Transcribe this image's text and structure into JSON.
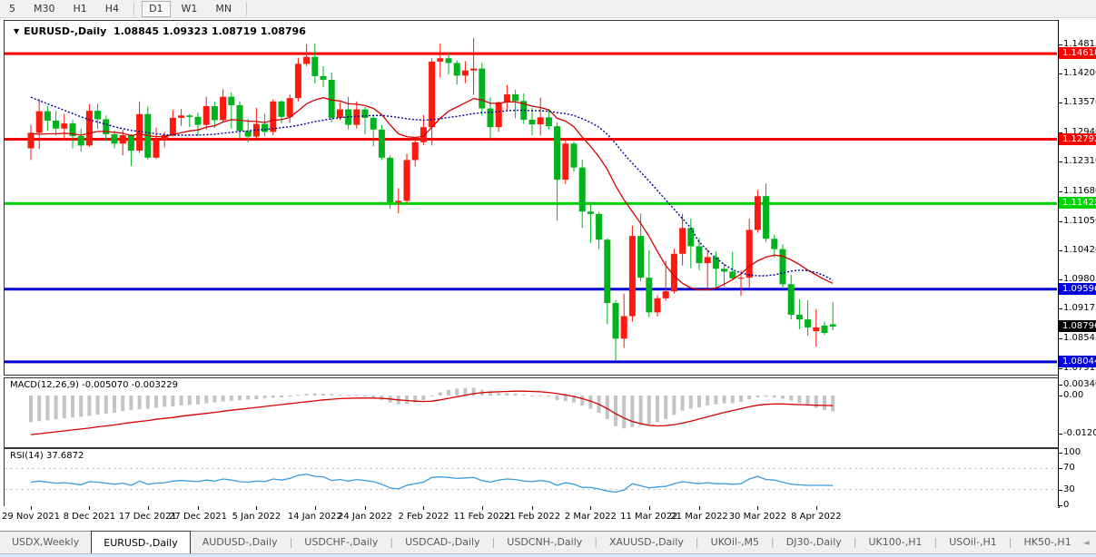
{
  "toolbar": {
    "timeframes": [
      {
        "label": "5",
        "active": false
      },
      {
        "label": "M30",
        "active": false
      },
      {
        "label": "H1",
        "active": false
      },
      {
        "label": "H4",
        "active": false
      },
      {
        "label": "D1",
        "active": true
      },
      {
        "label": "W1",
        "active": false
      },
      {
        "label": "MN",
        "active": false
      }
    ]
  },
  "icons": {
    "symbol_dropdown": "▼",
    "tab_scroll_left": "◄",
    "tab_scroll_right": "►"
  },
  "chart_data": {
    "type": "candlestick",
    "symbol_display": "EURUSD-,Daily",
    "ohlc_display": "1.08845 1.09323 1.08719 1.08796",
    "current": {
      "open": 1.08845,
      "high": 1.09323,
      "low": 1.08719,
      "close": 1.08796
    },
    "colors": {
      "up_candle": "#fb1a0d",
      "down_candle": "#00b21c",
      "hline_red": "#fe0000",
      "hline_green": "#00e40b",
      "hline_blue": "#0000dc",
      "ma_red": "#d40000",
      "ma_blue": "#000096",
      "macd_hist": "#c4c4c4",
      "macd_signal": "#d40000",
      "rsi_line": "#3e9cdd",
      "rsi_level": "#c8c8c8",
      "current_badge_bg": "#000000"
    },
    "hlines": [
      {
        "price": 1.14618,
        "color": "#fe0000",
        "badge": "1.14618"
      },
      {
        "price": 1.12792,
        "color": "#fe0000",
        "badge": "1.12792"
      },
      {
        "price": 1.11422,
        "color": "#00d400",
        "badge": "1.11422"
      },
      {
        "price": 1.09596,
        "color": "#0000dc",
        "badge": "1.09596"
      },
      {
        "price": 1.08044,
        "color": "#0000dc",
        "badge": "1.08044"
      }
    ],
    "price_axis_ticks": [
      "1.14815",
      "1.14200",
      "1.13570",
      "1.12940",
      "1.12310",
      "1.11680",
      "1.11050",
      "1.10420",
      "1.09805",
      "1.09175",
      "1.08545",
      "1.07915"
    ],
    "current_price_badge": "1.08796",
    "x_axis": {
      "labels": [
        "29 Nov 2021",
        "8 Dec 2021",
        "17 Dec 2021",
        "27 Dec 2021",
        "5 Jan 2022",
        "14 Jan 2022",
        "24 Jan 2022",
        "2 Feb 2022",
        "11 Feb 2022",
        "21 Feb 2022",
        "2 Mar 2022",
        "11 Mar 2022",
        "21 Mar 2022",
        "30 Mar 2022",
        "8 Apr 2022"
      ],
      "label_indices": [
        0,
        7,
        14,
        20,
        27,
        34,
        40,
        47,
        54,
        60,
        67,
        74,
        80,
        87,
        94
      ]
    },
    "candles": [
      [
        1.126,
        1.131,
        1.1235,
        1.1293
      ],
      [
        1.1293,
        1.1365,
        1.1258,
        1.1339
      ],
      [
        1.1339,
        1.135,
        1.1297,
        1.1319
      ],
      [
        1.1319,
        1.134,
        1.1287,
        1.1302
      ],
      [
        1.1302,
        1.1334,
        1.1277,
        1.1313
      ],
      [
        1.1313,
        1.132,
        1.126,
        1.1286
      ],
      [
        1.1286,
        1.1302,
        1.1253,
        1.1266
      ],
      [
        1.1266,
        1.1354,
        1.1263,
        1.134
      ],
      [
        1.134,
        1.1355,
        1.1301,
        1.1322
      ],
      [
        1.1322,
        1.133,
        1.1276,
        1.129
      ],
      [
        1.129,
        1.1298,
        1.126,
        1.127
      ],
      [
        1.127,
        1.13,
        1.1245,
        1.1288
      ],
      [
        1.1288,
        1.129,
        1.1222,
        1.1255
      ],
      [
        1.1255,
        1.136,
        1.125,
        1.1333
      ],
      [
        1.1333,
        1.1349,
        1.1236,
        1.124
      ],
      [
        1.124,
        1.1304,
        1.1237,
        1.1278
      ],
      [
        1.1278,
        1.1295,
        1.1262,
        1.1288
      ],
      [
        1.1288,
        1.1342,
        1.1285,
        1.1325
      ],
      [
        1.1325,
        1.1344,
        1.1308,
        1.133
      ],
      [
        1.133,
        1.1333,
        1.1305,
        1.1327
      ],
      [
        1.1327,
        1.1336,
        1.1287,
        1.131
      ],
      [
        1.131,
        1.137,
        1.13,
        1.135
      ],
      [
        1.135,
        1.136,
        1.1304,
        1.132
      ],
      [
        1.132,
        1.1386,
        1.1315,
        1.137
      ],
      [
        1.137,
        1.1379,
        1.1302,
        1.1352
      ],
      [
        1.1352,
        1.136,
        1.1279,
        1.1297
      ],
      [
        1.1297,
        1.1323,
        1.1272,
        1.1285
      ],
      [
        1.1285,
        1.1346,
        1.1278,
        1.1312
      ],
      [
        1.1312,
        1.1334,
        1.1285,
        1.1295
      ],
      [
        1.1295,
        1.1365,
        1.1288,
        1.136
      ],
      [
        1.136,
        1.1362,
        1.1313,
        1.1327
      ],
      [
        1.1327,
        1.1375,
        1.1314,
        1.1367
      ],
      [
        1.1367,
        1.1453,
        1.136,
        1.144
      ],
      [
        1.144,
        1.1482,
        1.1435,
        1.1455
      ],
      [
        1.1455,
        1.1483,
        1.1398,
        1.1414
      ],
      [
        1.1414,
        1.1435,
        1.139,
        1.1406
      ],
      [
        1.1406,
        1.1422,
        1.1315,
        1.1325
      ],
      [
        1.1325,
        1.1358,
        1.132,
        1.1343
      ],
      [
        1.1343,
        1.137,
        1.13,
        1.131
      ],
      [
        1.131,
        1.136,
        1.1302,
        1.1343
      ],
      [
        1.1343,
        1.1348,
        1.129,
        1.1325
      ],
      [
        1.1325,
        1.133,
        1.1264,
        1.13
      ],
      [
        1.13,
        1.131,
        1.1235,
        1.124
      ],
      [
        1.124,
        1.1245,
        1.1131,
        1.1145
      ],
      [
        1.1145,
        1.1175,
        1.1121,
        1.1148
      ],
      [
        1.1148,
        1.1248,
        1.1141,
        1.1235
      ],
      [
        1.1235,
        1.128,
        1.1221,
        1.1273
      ],
      [
        1.1273,
        1.1331,
        1.1267,
        1.1305
      ],
      [
        1.1305,
        1.1452,
        1.1266,
        1.1445
      ],
      [
        1.1445,
        1.1483,
        1.1411,
        1.1452
      ],
      [
        1.1452,
        1.1465,
        1.1418,
        1.1442
      ],
      [
        1.1442,
        1.1448,
        1.1396,
        1.1415
      ],
      [
        1.1415,
        1.1446,
        1.1399,
        1.1426
      ],
      [
        1.1426,
        1.1495,
        1.1374,
        1.143
      ],
      [
        1.143,
        1.1442,
        1.133,
        1.1345
      ],
      [
        1.1345,
        1.1369,
        1.128,
        1.1305
      ],
      [
        1.1305,
        1.136,
        1.1295,
        1.1358
      ],
      [
        1.1358,
        1.1395,
        1.134,
        1.1375
      ],
      [
        1.1375,
        1.1385,
        1.1324,
        1.1361
      ],
      [
        1.1361,
        1.1377,
        1.1312,
        1.1321
      ],
      [
        1.1321,
        1.1346,
        1.1288,
        1.1311
      ],
      [
        1.1311,
        1.1368,
        1.1287,
        1.1326
      ],
      [
        1.1326,
        1.1344,
        1.13,
        1.1307
      ],
      [
        1.1307,
        1.1315,
        1.1106,
        1.1193
      ],
      [
        1.1193,
        1.128,
        1.1184,
        1.127
      ],
      [
        1.127,
        1.1274,
        1.121,
        1.1219
      ],
      [
        1.1219,
        1.1236,
        1.109,
        1.1125
      ],
      [
        1.1125,
        1.1145,
        1.1058,
        1.112
      ],
      [
        1.112,
        1.1124,
        1.1045,
        1.1065
      ],
      [
        1.1065,
        1.1068,
        1.0885,
        1.093
      ],
      [
        1.093,
        1.0936,
        1.0806,
        1.0854
      ],
      [
        1.0854,
        1.095,
        1.0834,
        1.0902
      ],
      [
        1.0902,
        1.1095,
        1.089,
        1.1073
      ],
      [
        1.1073,
        1.1121,
        1.0976,
        1.0984
      ],
      [
        1.0984,
        1.1043,
        1.09,
        1.091
      ],
      [
        1.091,
        1.0947,
        1.0901,
        1.094
      ],
      [
        1.094,
        1.102,
        1.0935,
        1.0955
      ],
      [
        1.0955,
        1.1046,
        1.095,
        1.1035
      ],
      [
        1.1035,
        1.112,
        1.101,
        1.109
      ],
      [
        1.109,
        1.111,
        1.1004,
        1.1051
      ],
      [
        1.1051,
        1.1069,
        1.1,
        1.1015
      ],
      [
        1.1015,
        1.1044,
        1.096,
        1.1028
      ],
      [
        1.1028,
        1.104,
        1.0963,
        1.1003
      ],
      [
        1.1003,
        1.1014,
        1.0965,
        1.0997
      ],
      [
        1.0997,
        1.1039,
        1.098,
        1.0983
      ],
      [
        1.0983,
        1.1,
        1.0945,
        1.0984
      ],
      [
        1.0984,
        1.111,
        1.0963,
        1.1086
      ],
      [
        1.1086,
        1.1171,
        1.108,
        1.1158
      ],
      [
        1.1158,
        1.1185,
        1.106,
        1.1067
      ],
      [
        1.1067,
        1.1076,
        1.1027,
        1.1045
      ],
      [
        1.1045,
        1.1055,
        1.096,
        1.097
      ],
      [
        1.097,
        1.099,
        1.0895,
        1.0905
      ],
      [
        1.0905,
        1.0938,
        1.0874,
        1.0895
      ],
      [
        1.0895,
        1.0936,
        1.086,
        1.0878
      ],
      [
        1.087,
        1.0917,
        1.0837,
        1.0878
      ],
      [
        1.0882,
        1.089,
        1.0862,
        1.0866
      ],
      [
        1.08845,
        1.09323,
        1.08719,
        1.08796
      ]
    ],
    "ma_fast_red": [
      1.1292,
      1.129,
      1.1291,
      1.1291,
      1.1292,
      1.1291,
      1.1288,
      1.1292,
      1.1296,
      1.1296,
      1.1294,
      1.1292,
      1.1287,
      1.1291,
      1.1287,
      1.1285,
      1.1285,
      1.1289,
      1.1293,
      1.1297,
      1.1299,
      1.1305,
      1.1308,
      1.1316,
      1.1321,
      1.132,
      1.1318,
      1.1317,
      1.1315,
      1.132,
      1.1321,
      1.1326,
      1.134,
      1.1355,
      1.1363,
      1.1368,
      1.1363,
      1.1361,
      1.1355,
      1.1354,
      1.1351,
      1.1345,
      1.1332,
      1.131,
      1.1291,
      1.1285,
      1.1283,
      1.1286,
      1.1305,
      1.1324,
      1.1339,
      1.1348,
      1.1357,
      1.1366,
      1.1363,
      1.1356,
      1.1356,
      1.1359,
      1.1359,
      1.1355,
      1.135,
      1.1347,
      1.1342,
      1.1324,
      1.1318,
      1.1306,
      1.1284,
      1.1264,
      1.1242,
      1.1215,
      1.118,
      1.115,
      1.1125,
      1.11,
      1.1072,
      1.104,
      1.101,
      1.0988,
      1.0972,
      1.0962,
      1.0958,
      1.0958,
      1.0962,
      1.097,
      1.098,
      1.0992,
      1.1008,
      1.102,
      1.1028,
      1.1032,
      1.103,
      1.1022,
      1.1012,
      1.1,
      1.099,
      1.098,
      1.0972
    ],
    "ma_slow_blue": [
      1.1369,
      1.1362,
      1.1355,
      1.1348,
      1.1341,
      1.1334,
      1.1327,
      1.1321,
      1.1316,
      1.1311,
      1.1306,
      1.1302,
      1.1298,
      1.1296,
      1.1293,
      1.1291,
      1.1289,
      1.1288,
      1.1288,
      1.1288,
      1.1288,
      1.1289,
      1.129,
      1.1292,
      1.1294,
      1.1296,
      1.1297,
      1.1299,
      1.13,
      1.1302,
      1.1304,
      1.1306,
      1.1309,
      1.1313,
      1.1317,
      1.132,
      1.1323,
      1.1325,
      1.1327,
      1.1328,
      1.1329,
      1.133,
      1.133,
      1.1328,
      1.1326,
      1.1323,
      1.1321,
      1.132,
      1.1321,
      1.1323,
      1.1326,
      1.1328,
      1.1331,
      1.1334,
      1.1336,
      1.1337,
      1.1338,
      1.134,
      1.1341,
      1.1341,
      1.134,
      1.134,
      1.1339,
      1.1336,
      1.1334,
      1.133,
      1.1323,
      1.1315,
      1.1305,
      1.129,
      1.127,
      1.1248,
      1.1228,
      1.1209,
      1.119,
      1.117,
      1.115,
      1.113,
      1.111,
      1.109,
      1.106,
      1.1042,
      1.1026,
      1.1012,
      1.1001,
      1.0994,
      1.099,
      1.0988,
      1.0988,
      1.099,
      1.0994,
      1.0998,
      1.1,
      1.0999,
      1.0995,
      1.0988,
      1.0978
    ],
    "macd": {
      "display": "MACD(12,26,9) -0.005070 -0.003229",
      "label": "MACD(12,26,9)",
      "main_value": -0.00507,
      "signal_value": -0.003229,
      "axis_ticks": [
        {
          "label": "0.003408",
          "value": 0.003408
        },
        {
          "label": "0.00",
          "value": 0
        },
        {
          "label": "-0.01205",
          "value": -0.01205
        }
      ],
      "histogram": [
        -0.0085,
        -0.0082,
        -0.0079,
        -0.0076,
        -0.0073,
        -0.007,
        -0.0068,
        -0.0065,
        -0.0061,
        -0.0058,
        -0.0055,
        -0.005,
        -0.0046,
        -0.0044,
        -0.0042,
        -0.0039,
        -0.0036,
        -0.0035,
        -0.0032,
        -0.003,
        -0.0028,
        -0.0025,
        -0.0022,
        -0.0019,
        -0.0017,
        -0.0015,
        -0.0013,
        -0.0012,
        -0.0009,
        -0.0007,
        -0.0006,
        -0.0003,
        0.0002,
        0.0005,
        0.0007,
        0.0006,
        0.0005,
        0.0003,
        0.0002,
        0.0001,
        -0.0003,
        -0.0008,
        -0.0014,
        -0.0022,
        -0.0028,
        -0.0026,
        -0.0022,
        -0.0015,
        -0.0002,
        0.001,
        0.0018,
        0.0022,
        0.0024,
        0.0025,
        0.0018,
        0.001,
        0.0008,
        0.0008,
        0.0007,
        0.0003,
        -0.0001,
        -0.0002,
        -0.0004,
        -0.0015,
        -0.0018,
        -0.0022,
        -0.0032,
        -0.0042,
        -0.0055,
        -0.0075,
        -0.0098,
        -0.0105,
        -0.01,
        -0.0095,
        -0.0092,
        -0.0085,
        -0.0075,
        -0.0062,
        -0.0048,
        -0.0042,
        -0.0038,
        -0.0032,
        -0.0028,
        -0.0025,
        -0.0024,
        -0.002,
        -0.0012,
        -0.0006,
        -0.0004,
        -0.0006,
        -0.001,
        -0.0016,
        -0.0024,
        -0.0032,
        -0.004,
        -0.0046,
        -0.00507
      ],
      "signal": [
        -0.0125,
        -0.0122,
        -0.0119,
        -0.0116,
        -0.0113,
        -0.011,
        -0.0107,
        -0.0104,
        -0.01,
        -0.0097,
        -0.0094,
        -0.009,
        -0.0086,
        -0.0083,
        -0.008,
        -0.0076,
        -0.0073,
        -0.007,
        -0.0066,
        -0.0063,
        -0.006,
        -0.0057,
        -0.0054,
        -0.005,
        -0.0047,
        -0.0044,
        -0.0041,
        -0.0038,
        -0.0035,
        -0.0032,
        -0.0029,
        -0.0026,
        -0.0023,
        -0.002,
        -0.0017,
        -0.0014,
        -0.0012,
        -0.001,
        -0.0009,
        -0.0008,
        -0.0008,
        -0.0008,
        -0.0009,
        -0.0011,
        -0.0014,
        -0.0016,
        -0.0018,
        -0.0019,
        -0.0018,
        -0.0014,
        -0.0009,
        -0.0004,
        0.0001,
        0.0006,
        0.0009,
        0.0011,
        0.0012,
        0.0013,
        0.0014,
        0.0014,
        0.0013,
        0.0012,
        0.001,
        0.0006,
        0.0002,
        -0.0003,
        -0.001,
        -0.0018,
        -0.0028,
        -0.0042,
        -0.0058,
        -0.0072,
        -0.0083,
        -0.009,
        -0.0095,
        -0.0097,
        -0.0096,
        -0.0093,
        -0.0088,
        -0.0082,
        -0.0075,
        -0.0068,
        -0.0061,
        -0.0054,
        -0.0048,
        -0.0042,
        -0.0036,
        -0.0031,
        -0.0028,
        -0.0027,
        -0.0027,
        -0.0028,
        -0.0029,
        -0.003,
        -0.0031,
        -0.00315,
        -0.003229
      ]
    },
    "rsi": {
      "display": "RSI(14) 37.6872",
      "label": "RSI(14)",
      "value": 37.6872,
      "axis_ticks": [
        100,
        70,
        30,
        0
      ],
      "levels": [
        70,
        30
      ],
      "values": [
        44,
        46,
        44,
        42,
        43,
        41,
        39,
        45,
        44,
        42,
        40,
        42,
        38,
        46,
        40,
        42,
        43,
        46,
        47,
        46,
        45,
        48,
        46,
        50,
        48,
        45,
        44,
        46,
        45,
        50,
        48,
        51,
        57,
        59,
        55,
        54,
        47,
        49,
        46,
        49,
        47,
        45,
        40,
        33,
        31,
        38,
        41,
        44,
        53,
        54,
        53,
        51,
        52,
        53,
        47,
        44,
        48,
        50,
        49,
        46,
        45,
        47,
        45,
        38,
        43,
        40,
        34,
        34,
        31,
        27,
        25,
        29,
        41,
        37,
        33,
        35,
        36,
        41,
        45,
        43,
        41,
        43,
        41,
        41,
        40,
        41,
        50,
        55,
        49,
        48,
        44,
        40,
        39,
        38,
        38,
        38,
        37.69
      ]
    }
  },
  "tabs": {
    "items": [
      {
        "label": "USDX,Weekly",
        "active": false
      },
      {
        "label": "EURUSD-,Daily",
        "active": true
      },
      {
        "label": "AUDUSD-,Daily",
        "active": false
      },
      {
        "label": "USDCHF-,Daily",
        "active": false
      },
      {
        "label": "USDCAD-,Daily",
        "active": false
      },
      {
        "label": "USDCNH-,Daily",
        "active": false
      },
      {
        "label": "XAUUSD-,Daily",
        "active": false
      },
      {
        "label": "UKOil-,M5",
        "active": false
      },
      {
        "label": "DJ30-,Daily",
        "active": false
      },
      {
        "label": "UK100-,H1",
        "active": false
      },
      {
        "label": "USOil-,H1",
        "active": false
      },
      {
        "label": "HK50-,H1",
        "active": false
      }
    ]
  }
}
